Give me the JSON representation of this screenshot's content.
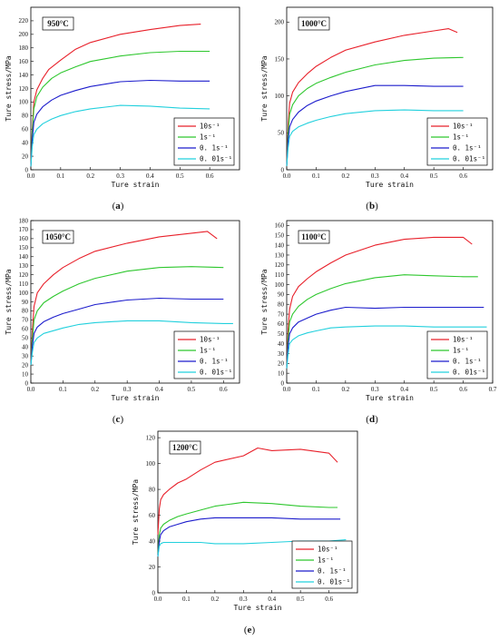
{
  "chart_data": [
    {
      "type": "line",
      "panel_label": "(a)",
      "temperature_label": "950°C",
      "xlabel": "Ture strain",
      "ylabel": "Ture stress/MPa",
      "xlim": [
        0,
        0.7
      ],
      "ylim": [
        0,
        240
      ],
      "xticks": [
        "0.0",
        "0.1",
        "0.2",
        "0.3",
        "0.4",
        "0.5",
        "0.6"
      ],
      "yticks": [
        "0",
        "20",
        "40",
        "60",
        "80",
        "100",
        "120",
        "140",
        "160",
        "180",
        "200",
        "220"
      ],
      "legend_position": "bottom-right",
      "series": [
        {
          "name": "10s⁻¹",
          "color": "#e8202a",
          "x": [
            0,
            0.005,
            0.01,
            0.02,
            0.04,
            0.06,
            0.1,
            0.15,
            0.2,
            0.3,
            0.4,
            0.5,
            0.57
          ],
          "y": [
            5,
            60,
            100,
            118,
            135,
            148,
            162,
            178,
            188,
            200,
            207,
            213,
            215
          ]
        },
        {
          "name": "1s⁻¹",
          "color": "#2ec72e",
          "x": [
            0,
            0.005,
            0.01,
            0.02,
            0.04,
            0.07,
            0.1,
            0.15,
            0.2,
            0.3,
            0.4,
            0.5,
            0.6
          ],
          "y": [
            5,
            55,
            90,
            108,
            122,
            135,
            143,
            152,
            160,
            168,
            173,
            175,
            175
          ]
        },
        {
          "name": "0. 1s⁻¹",
          "color": "#1c1ccc",
          "x": [
            0,
            0.005,
            0.01,
            0.02,
            0.04,
            0.07,
            0.1,
            0.15,
            0.2,
            0.3,
            0.4,
            0.5,
            0.6
          ],
          "y": [
            5,
            45,
            70,
            82,
            93,
            103,
            110,
            117,
            123,
            130,
            132,
            131,
            131
          ]
        },
        {
          "name": "0. 01s⁻¹",
          "color": "#22d0dd",
          "x": [
            0,
            0.005,
            0.01,
            0.02,
            0.04,
            0.07,
            0.1,
            0.15,
            0.2,
            0.3,
            0.4,
            0.5,
            0.6
          ],
          "y": [
            5,
            35,
            52,
            60,
            68,
            75,
            80,
            86,
            90,
            95,
            94,
            91,
            90
          ]
        }
      ]
    },
    {
      "type": "line",
      "panel_label": "(b)",
      "temperature_label": "1000°C",
      "xlabel": "Ture strain",
      "ylabel": "Ture stress/MPa",
      "xlim": [
        0,
        0.7
      ],
      "ylim": [
        0,
        220
      ],
      "xticks": [
        "0.0",
        "0.1",
        "0.2",
        "0.3",
        "0.4",
        "0.5",
        "0.6"
      ],
      "yticks": [
        "0",
        "50",
        "100",
        "150",
        "200"
      ],
      "legend_position": "bottom-right",
      "series": [
        {
          "name": "10s⁻¹",
          "color": "#e8202a",
          "x": [
            0,
            0.005,
            0.01,
            0.02,
            0.04,
            0.07,
            0.1,
            0.15,
            0.2,
            0.3,
            0.4,
            0.5,
            0.55,
            0.58
          ],
          "y": [
            5,
            60,
            90,
            105,
            118,
            130,
            140,
            152,
            162,
            173,
            182,
            188,
            191,
            186
          ]
        },
        {
          "name": "1s⁻¹",
          "color": "#2ec72e",
          "x": [
            0,
            0.005,
            0.01,
            0.02,
            0.04,
            0.07,
            0.1,
            0.15,
            0.2,
            0.3,
            0.4,
            0.5,
            0.6
          ],
          "y": [
            5,
            50,
            75,
            88,
            100,
            110,
            117,
            125,
            132,
            142,
            148,
            151,
            152
          ]
        },
        {
          "name": "0. 1s⁻¹",
          "color": "#1c1ccc",
          "x": [
            0,
            0.005,
            0.01,
            0.02,
            0.04,
            0.07,
            0.1,
            0.15,
            0.2,
            0.3,
            0.4,
            0.5,
            0.6
          ],
          "y": [
            5,
            40,
            58,
            68,
            78,
            87,
            93,
            100,
            106,
            114,
            114,
            113,
            113
          ]
        },
        {
          "name": "0. 01s⁻¹",
          "color": "#22d0dd",
          "x": [
            0,
            0.005,
            0.01,
            0.02,
            0.04,
            0.07,
            0.1,
            0.15,
            0.2,
            0.3,
            0.4,
            0.5,
            0.6
          ],
          "y": [
            5,
            30,
            45,
            52,
            58,
            63,
            67,
            72,
            76,
            80,
            81,
            80,
            80
          ]
        }
      ]
    },
    {
      "type": "line",
      "panel_label": "(c)",
      "temperature_label": "1050°C",
      "xlabel": "Ture strain",
      "ylabel": "Ture stress/MPa",
      "xlim": [
        0,
        0.65
      ],
      "ylim": [
        0,
        180
      ],
      "xticks": [
        "0.0",
        "0.1",
        "0.2",
        "0.3",
        "0.4",
        "0.5",
        "0.6"
      ],
      "yticks": [
        "0",
        "10",
        "20",
        "30",
        "40",
        "50",
        "60",
        "70",
        "80",
        "90",
        "100",
        "110",
        "120",
        "130",
        "140",
        "150",
        "160",
        "170",
        "180"
      ],
      "legend_position": "bottom-right",
      "series": [
        {
          "name": "10s⁻¹",
          "color": "#e8202a",
          "x": [
            0,
            0.005,
            0.01,
            0.02,
            0.04,
            0.07,
            0.1,
            0.15,
            0.2,
            0.3,
            0.4,
            0.5,
            0.55,
            0.58
          ],
          "y": [
            20,
            60,
            85,
            100,
            110,
            120,
            128,
            138,
            146,
            155,
            162,
            166,
            168,
            160
          ]
        },
        {
          "name": "1s⁻¹",
          "color": "#2ec72e",
          "x": [
            0,
            0.005,
            0.01,
            0.02,
            0.04,
            0.07,
            0.1,
            0.15,
            0.2,
            0.3,
            0.4,
            0.5,
            0.6
          ],
          "y": [
            20,
            50,
            70,
            80,
            89,
            96,
            102,
            110,
            116,
            124,
            128,
            129,
            128
          ]
        },
        {
          "name": "0. 1s⁻¹",
          "color": "#1c1ccc",
          "x": [
            0,
            0.005,
            0.01,
            0.02,
            0.04,
            0.07,
            0.1,
            0.15,
            0.2,
            0.3,
            0.4,
            0.5,
            0.6
          ],
          "y": [
            20,
            42,
            55,
            62,
            68,
            73,
            77,
            82,
            87,
            92,
            94,
            93,
            93
          ]
        },
        {
          "name": "0. 01s⁻¹",
          "color": "#22d0dd",
          "x": [
            0,
            0.005,
            0.01,
            0.02,
            0.04,
            0.07,
            0.1,
            0.15,
            0.2,
            0.3,
            0.4,
            0.5,
            0.6,
            0.63
          ],
          "y": [
            20,
            35,
            45,
            50,
            55,
            58,
            61,
            65,
            67,
            69,
            69,
            67,
            66,
            66
          ]
        }
      ]
    },
    {
      "type": "line",
      "panel_label": "(d)",
      "temperature_label": "1100°C",
      "xlabel": "Ture strain",
      "ylabel": "Ture stress/MPa",
      "xlim": [
        0,
        0.7
      ],
      "ylim": [
        0,
        165
      ],
      "xticks": [
        "0.0",
        "0.1",
        "0.2",
        "0.3",
        "0.4",
        "0.5",
        "0.6",
        "0.7"
      ],
      "yticks": [
        "0",
        "10",
        "20",
        "30",
        "40",
        "50",
        "60",
        "70",
        "80",
        "90",
        "100",
        "110",
        "120",
        "130",
        "140",
        "150",
        "160"
      ],
      "legend_position": "bottom-right",
      "series": [
        {
          "name": "10s⁻¹",
          "color": "#e8202a",
          "x": [
            0,
            0.005,
            0.01,
            0.02,
            0.04,
            0.07,
            0.1,
            0.15,
            0.2,
            0.3,
            0.4,
            0.5,
            0.6,
            0.63
          ],
          "y": [
            15,
            55,
            75,
            88,
            98,
            106,
            113,
            122,
            130,
            140,
            146,
            148,
            148,
            141
          ]
        },
        {
          "name": "1s⁻¹",
          "color": "#2ec72e",
          "x": [
            0,
            0.005,
            0.01,
            0.02,
            0.04,
            0.07,
            0.1,
            0.15,
            0.2,
            0.3,
            0.4,
            0.5,
            0.6,
            0.65
          ],
          "y": [
            15,
            45,
            62,
            70,
            78,
            85,
            90,
            96,
            101,
            107,
            110,
            109,
            108,
            108
          ]
        },
        {
          "name": "0. 1s⁻¹",
          "color": "#1c1ccc",
          "x": [
            0,
            0.005,
            0.01,
            0.02,
            0.04,
            0.07,
            0.1,
            0.15,
            0.2,
            0.3,
            0.4,
            0.5,
            0.6,
            0.67
          ],
          "y": [
            15,
            38,
            50,
            56,
            62,
            66,
            70,
            74,
            77,
            76,
            77,
            77,
            77,
            77
          ]
        },
        {
          "name": "0. 01s⁻¹",
          "color": "#22d0dd",
          "x": [
            0,
            0.005,
            0.01,
            0.02,
            0.04,
            0.07,
            0.1,
            0.15,
            0.2,
            0.3,
            0.4,
            0.5,
            0.6,
            0.68
          ],
          "y": [
            15,
            30,
            40,
            44,
            48,
            51,
            53,
            56,
            57,
            58,
            58,
            57,
            57,
            57
          ]
        }
      ]
    },
    {
      "type": "line",
      "panel_label": "(e)",
      "temperature_label": "1200°C",
      "xlabel": "Ture strain",
      "ylabel": "Ture stress/MPa",
      "xlim": [
        0,
        0.7
      ],
      "ylim": [
        0,
        125
      ],
      "xticks": [
        "0.0",
        "0.1",
        "0.2",
        "0.3",
        "0.4",
        "0.5",
        "0.6"
      ],
      "yticks": [
        "0",
        "20",
        "40",
        "60",
        "80",
        "100",
        "120"
      ],
      "legend_position": "bottom-right",
      "series": [
        {
          "name": "10s⁻¹",
          "color": "#e8202a",
          "x": [
            0,
            0.005,
            0.01,
            0.02,
            0.04,
            0.07,
            0.1,
            0.15,
            0.2,
            0.3,
            0.35,
            0.4,
            0.5,
            0.6,
            0.63
          ],
          "y": [
            45,
            65,
            72,
            76,
            80,
            85,
            88,
            95,
            101,
            106,
            112,
            110,
            111,
            108,
            101
          ]
        },
        {
          "name": "1s⁻¹",
          "color": "#2ec72e",
          "x": [
            0,
            0.005,
            0.01,
            0.02,
            0.04,
            0.07,
            0.1,
            0.15,
            0.2,
            0.3,
            0.4,
            0.5,
            0.6,
            0.63
          ],
          "y": [
            30,
            45,
            50,
            53,
            56,
            59,
            61,
            64,
            67,
            70,
            69,
            67,
            66,
            66
          ]
        },
        {
          "name": "0. 1s⁻¹",
          "color": "#1c1ccc",
          "x": [
            0,
            0.005,
            0.01,
            0.02,
            0.04,
            0.07,
            0.1,
            0.15,
            0.2,
            0.3,
            0.4,
            0.5,
            0.6,
            0.64
          ],
          "y": [
            28,
            40,
            45,
            48,
            51,
            53,
            55,
            57,
            58,
            58,
            58,
            57,
            57,
            57
          ]
        },
        {
          "name": "0. 01s⁻¹",
          "color": "#22d0dd",
          "x": [
            0,
            0.005,
            0.01,
            0.02,
            0.04,
            0.07,
            0.1,
            0.15,
            0.2,
            0.3,
            0.4,
            0.5,
            0.6,
            0.66
          ],
          "y": [
            28,
            36,
            38,
            39,
            39,
            39,
            39,
            39,
            38,
            38,
            39,
            40,
            40,
            41
          ]
        }
      ]
    }
  ]
}
